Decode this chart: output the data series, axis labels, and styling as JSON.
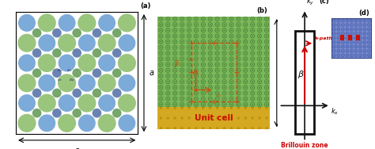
{
  "fig_width": 4.74,
  "fig_height": 1.88,
  "dpi": 100,
  "bg_white": "#ffffff",
  "panel_a": {
    "label": "(a)",
    "bg": "#ffffff",
    "border_color": "#000000",
    "color_lg": "#8cbd6a",
    "color_lb": "#6a9fd4",
    "color_sg": "#8cbd6a",
    "color_sb": "#6a9fd4",
    "color_dark_green": "#4a8a3a",
    "color_dark_blue": "#3a5a9a"
  },
  "panel_b": {
    "label": "(b)",
    "bg_top": "#7ab85a",
    "bg_bottom": "#d4a820",
    "pattern_color": "#3a6a2a",
    "dashed_color": "#c85010",
    "unit_cell_color": "#cc1100"
  },
  "panel_c": {
    "label": "(c)",
    "bg": "#ffffff",
    "rect_color": "#111111",
    "kpath_color": "#cc0000",
    "bz_label_color": "#cc0000"
  },
  "panel_d": {
    "label": "(d)",
    "bg": "#7888cc",
    "pattern_color": "#3858aa",
    "highlight_color": "#cc1100"
  }
}
